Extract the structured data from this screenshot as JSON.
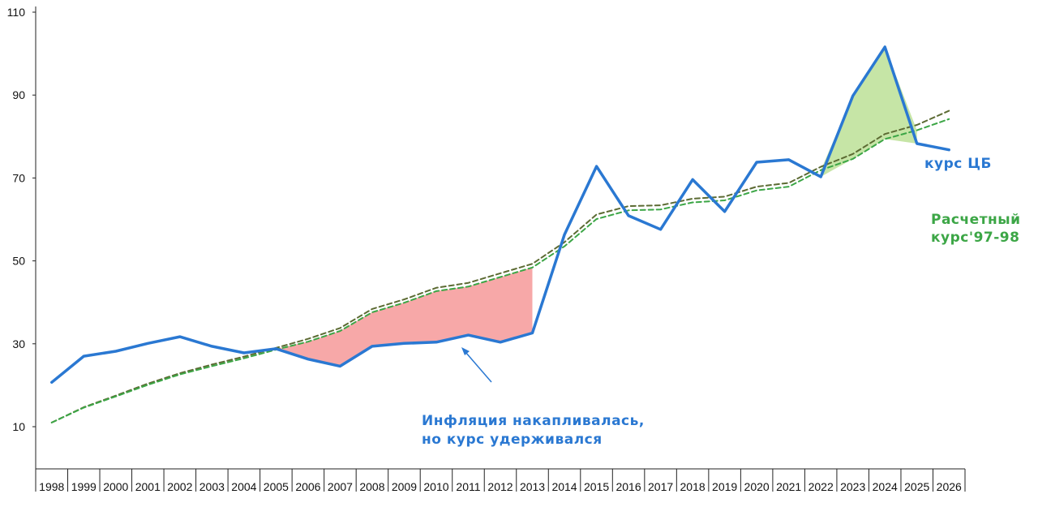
{
  "chart_data": {
    "type": "line",
    "title": "",
    "xlabel": "",
    "ylabel": "",
    "categories": [
      "1998",
      "1999",
      "2000",
      "2001",
      "2002",
      "2003",
      "2004",
      "2005",
      "2006",
      "2007",
      "2008",
      "2009",
      "2010",
      "2011",
      "2012",
      "2013",
      "2014",
      "2015",
      "2016",
      "2017",
      "2018",
      "2019",
      "2020",
      "2021",
      "2022",
      "2023",
      "2024",
      "2025",
      "2026"
    ],
    "ylim": [
      -1,
      110
    ],
    "yticks": [
      10,
      30,
      50,
      70,
      90,
      110
    ],
    "grid": false,
    "series": [
      {
        "name": "курс ЦБ",
        "color": "#2a78d2",
        "style": "solid",
        "values": [
          20.7,
          27.0,
          28.2,
          30.1,
          31.7,
          29.4,
          27.8,
          28.8,
          26.3,
          24.6,
          29.4,
          30.1,
          30.4,
          32.1,
          30.4,
          32.6,
          56.3,
          72.8,
          60.9,
          57.6,
          69.6,
          61.9,
          73.8,
          74.4,
          70.3,
          89.8,
          101.6,
          78.3,
          76.8
        ]
      },
      {
        "name": "Расчетный курс'97-98",
        "color": "#3ca646",
        "style": "dashed",
        "values": [
          11.0,
          14.6,
          17.3,
          20.1,
          22.6,
          24.6,
          26.5,
          28.6,
          30.5,
          33.1,
          37.6,
          39.9,
          42.7,
          43.8,
          46.1,
          48.4,
          53.5,
          60.1,
          62.2,
          62.4,
          64.1,
          64.6,
          67.0,
          67.9,
          71.9,
          74.6,
          79.4,
          81.5,
          84.2
        ]
      },
      {
        "name": "",
        "color": "#5c6b33",
        "style": "dashed",
        "values": [
          11.0,
          14.7,
          17.5,
          20.4,
          22.9,
          25.0,
          26.9,
          29.0,
          31.2,
          33.8,
          38.4,
          40.7,
          43.5,
          44.7,
          47.0,
          49.3,
          54.5,
          61.2,
          63.2,
          63.4,
          65.0,
          65.5,
          67.9,
          68.8,
          72.7,
          75.8,
          80.6,
          82.8,
          86.2
        ]
      }
    ],
    "fills": [
      {
        "from": "2005",
        "to": "2013",
        "color": "#f7a8a8"
      },
      {
        "from": "2022",
        "to": "2025",
        "color": "#c6e5a6"
      }
    ],
    "annotations": [
      {
        "text": "курс ЦБ",
        "color": "#2a78d2"
      },
      {
        "text": "Расчетный",
        "color": "#3ca646"
      },
      {
        "text": "курс'97-98",
        "color": "#3ca646"
      },
      {
        "text": "Инфляция накапливалась,",
        "color": "#2a78d2"
      },
      {
        "text": "но курс удерживался",
        "color": "#2a78d2"
      }
    ]
  }
}
